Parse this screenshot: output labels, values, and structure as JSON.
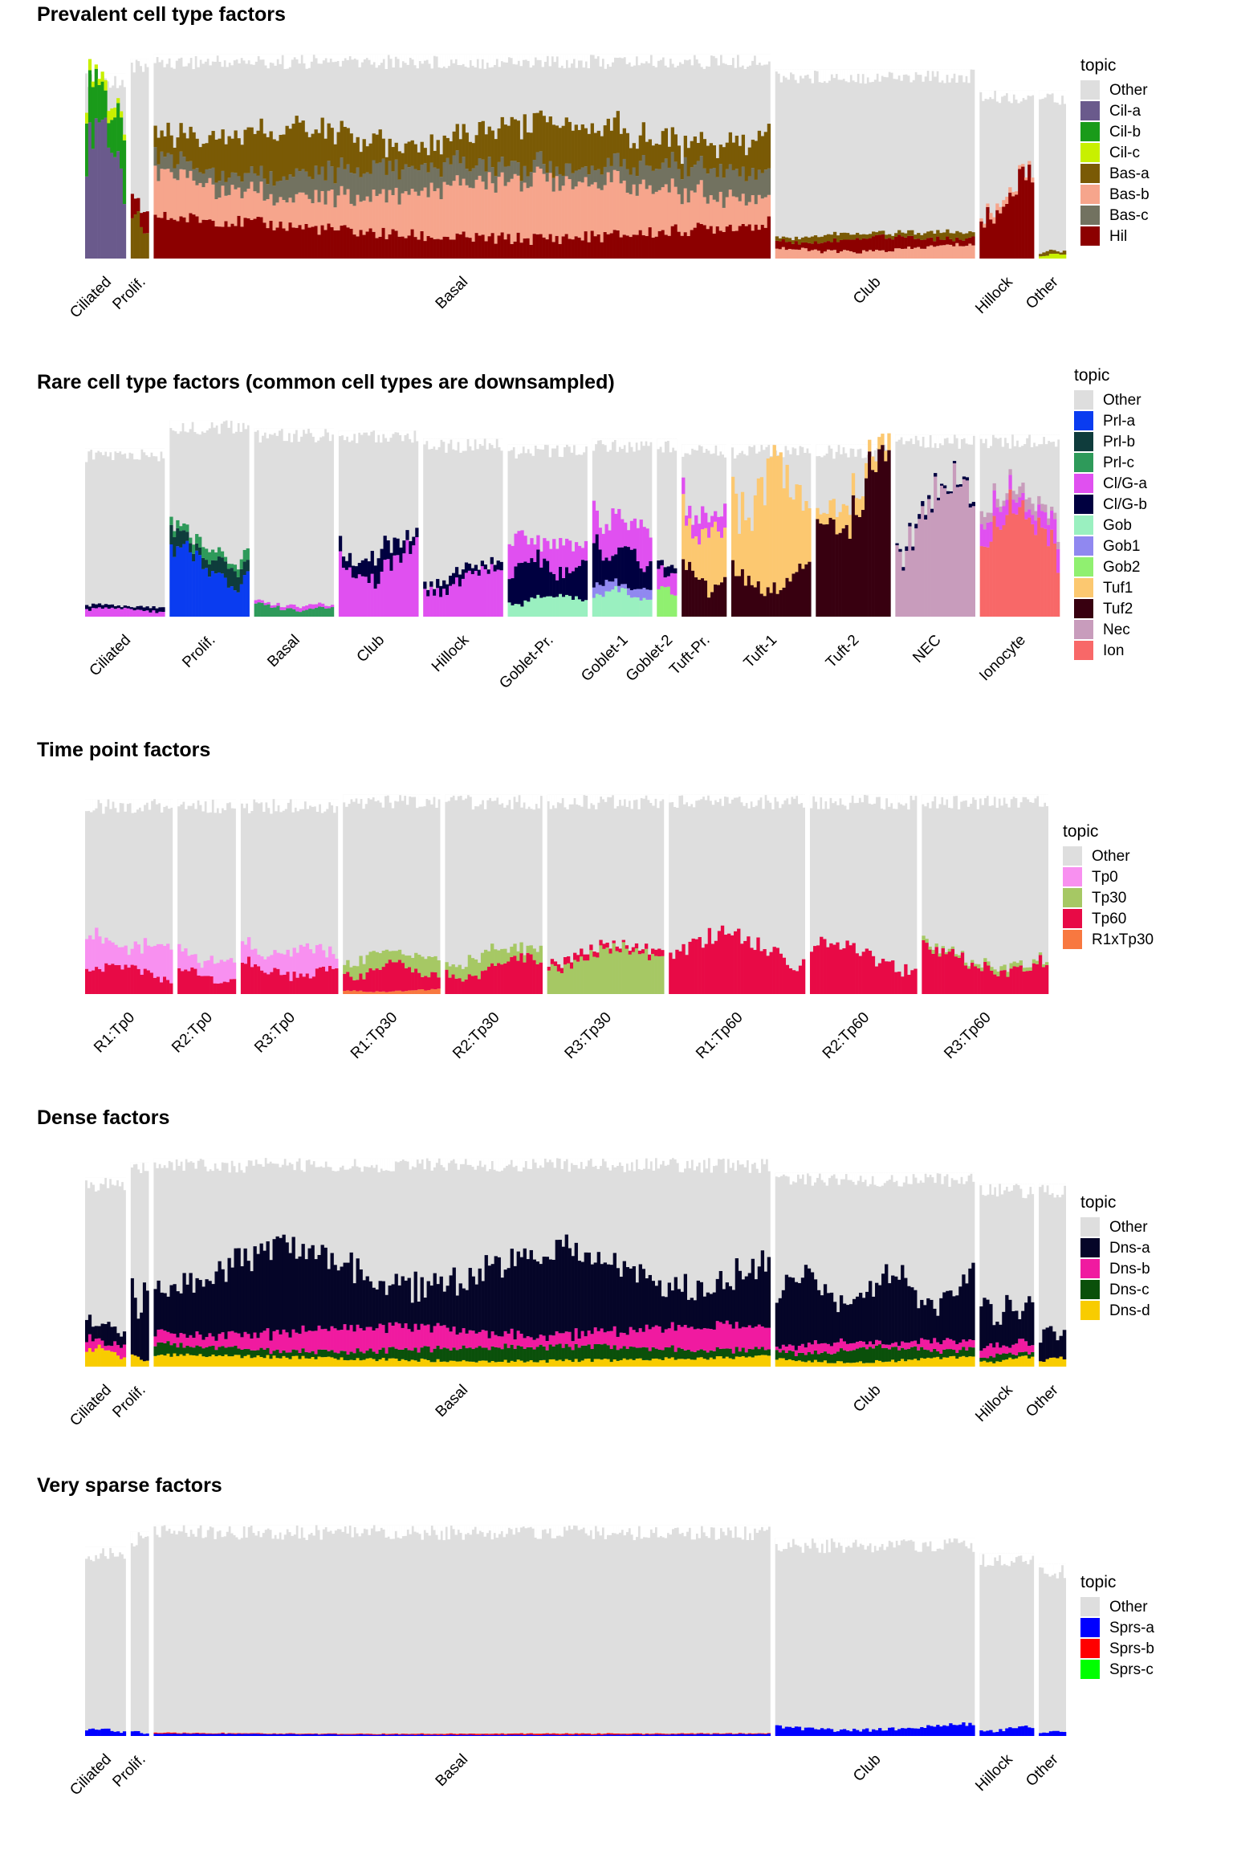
{
  "colors": {
    "Other": "#dedede",
    "Cil-a": "#6a5a8c",
    "Cil-b": "#1a9b1a",
    "Cil-c": "#c8f000",
    "Bas-a": "#7a5a05",
    "Bas-b": "#f6a58c",
    "Bas-c": "#727260",
    "Hil": "#8c0000",
    "Prl-a": "#0a3cf0",
    "Prl-b": "#0f3c3c",
    "Prl-c": "#2e9a5a",
    "Cl/G-a": "#e050f0",
    "Cl/G-b": "#000040",
    "Gob": "#9af0c0",
    "Gob1": "#9088f0",
    "Gob2": "#90f070",
    "Tuf1": "#fcc870",
    "Tuf2": "#380010",
    "Nec": "#c89cbc",
    "Ion": "#f86868",
    "Tp0": "#f890f0",
    "Tp30": "#a6c864",
    "Tp60": "#e80a46",
    "R1xTp30": "#f87840",
    "Dns-a": "#050528",
    "Dns-b": "#f01aa0",
    "Dns-c": "#0a500a",
    "Dns-d": "#f8cc00",
    "Sprs-a": "#0000ff",
    "Sprs-b": "#ff0000",
    "Sprs-c": "#00ff00"
  },
  "chart_data": [
    {
      "type": "bar",
      "title": "Prevalent cell type factors",
      "legend_title": "topic",
      "legend": [
        "Other",
        "Cil-a",
        "Cil-b",
        "Cil-c",
        "Bas-a",
        "Bas-b",
        "Bas-c",
        "Hil"
      ],
      "ylim": [
        0,
        1
      ],
      "groups": [
        {
          "label": "Ciliated",
          "n": 45,
          "other_height": 0.88,
          "profile": [
            [
              "Cil-a",
              0.6
            ],
            [
              "Cil-b",
              0.25
            ],
            [
              "Cil-c",
              0.05
            ]
          ]
        },
        {
          "label": "Prolif.",
          "n": 20,
          "other_height": 0.95,
          "profile": [
            [
              "Bas-a",
              0.2
            ],
            [
              "Hil",
              0.1
            ]
          ]
        },
        {
          "label": "Basal",
          "n": 680,
          "other_height": 0.97,
          "profile": [
            [
              "Hil",
              0.18
            ],
            [
              "Bas-b",
              0.25
            ],
            [
              "Bas-c",
              0.12
            ],
            [
              "Bas-a",
              0.2
            ]
          ]
        },
        {
          "label": "Club",
          "n": 220,
          "other_height": 0.9,
          "profile": [
            [
              "Bas-b",
              0.06
            ],
            [
              "Hil",
              0.06
            ],
            [
              "Bas-a",
              0.03
            ]
          ]
        },
        {
          "label": "Hillock",
          "n": 60,
          "other_height": 0.8,
          "profile": [
            [
              "Hil",
              0.35
            ],
            [
              "Bas-b",
              0.03
            ]
          ]
        },
        {
          "label": "Other",
          "n": 30,
          "other_height": 0.8,
          "profile": [
            [
              "Cil-c",
              0.02
            ],
            [
              "Bas-a",
              0.02
            ]
          ]
        }
      ]
    },
    {
      "type": "bar",
      "title": "Rare cell type factors (common cell types are downsampled)",
      "legend_title": "topic",
      "legend": [
        "Other",
        "Prl-a",
        "Prl-b",
        "Prl-c",
        "Cl/G-a",
        "Cl/G-b",
        "Gob",
        "Gob1",
        "Gob2",
        "Tuf1",
        "Tuf2",
        "Nec",
        "Ion"
      ],
      "ylim": [
        0,
        1
      ],
      "groups": [
        {
          "label": "Ciliated",
          "n": 80,
          "other_height": 0.83,
          "profile": [
            [
              "Cl/G-a",
              0.04
            ],
            [
              "Cl/G-b",
              0.02
            ]
          ]
        },
        {
          "label": "Prolif.",
          "n": 80,
          "other_height": 0.97,
          "profile": [
            [
              "Prl-a",
              0.3
            ],
            [
              "Prl-b",
              0.08
            ],
            [
              "Prl-c",
              0.05
            ]
          ]
        },
        {
          "label": "Basal",
          "n": 80,
          "other_height": 0.93,
          "profile": [
            [
              "Prl-c",
              0.06
            ],
            [
              "Cl/G-a",
              0.02
            ]
          ]
        },
        {
          "label": "Club",
          "n": 80,
          "other_height": 0.92,
          "profile": [
            [
              "Cl/G-a",
              0.35
            ],
            [
              "Cl/G-b",
              0.1
            ]
          ]
        },
        {
          "label": "Hillock",
          "n": 80,
          "other_height": 0.88,
          "profile": [
            [
              "Cl/G-a",
              0.22
            ],
            [
              "Cl/G-b",
              0.05
            ]
          ]
        },
        {
          "label": "Goblet-Pr.",
          "n": 80,
          "other_height": 0.85,
          "profile": [
            [
              "Gob",
              0.1
            ],
            [
              "Cl/G-b",
              0.2
            ],
            [
              "Cl/G-a",
              0.15
            ]
          ]
        },
        {
          "label": "Goblet-1",
          "n": 60,
          "other_height": 0.88,
          "profile": [
            [
              "Gob",
              0.12
            ],
            [
              "Gob1",
              0.05
            ],
            [
              "Cl/G-b",
              0.2
            ],
            [
              "Cl/G-a",
              0.2
            ]
          ]
        },
        {
          "label": "Goblet-2",
          "n": 20,
          "other_height": 0.88,
          "profile": [
            [
              "Gob2",
              0.15
            ],
            [
              "Cl/G-a",
              0.1
            ],
            [
              "Cl/G-b",
              0.05
            ]
          ]
        },
        {
          "label": "Tuft-Pr.",
          "n": 45,
          "other_height": 0.85,
          "profile": [
            [
              "Tuf2",
              0.25
            ],
            [
              "Tuf1",
              0.3
            ],
            [
              "Cl/G-a",
              0.1
            ]
          ]
        },
        {
          "label": "Tuft-1",
          "n": 80,
          "other_height": 0.85,
          "profile": [
            [
              "Tuf2",
              0.25
            ],
            [
              "Tuf1",
              0.55
            ]
          ]
        },
        {
          "label": "Tuft-2",
          "n": 75,
          "other_height": 0.85,
          "profile": [
            [
              "Tuf2",
              0.7
            ],
            [
              "Tuf1",
              0.1
            ]
          ]
        },
        {
          "label": "NEC",
          "n": 80,
          "other_height": 0.9,
          "profile": [
            [
              "Nec",
              0.6
            ],
            [
              "Cl/G-b",
              0.02
            ]
          ]
        },
        {
          "label": "Ionocyte",
          "n": 80,
          "other_height": 0.9,
          "profile": [
            [
              "Ion",
              0.5
            ],
            [
              "Cl/G-a",
              0.1
            ],
            [
              "Nec",
              0.05
            ]
          ]
        }
      ]
    },
    {
      "type": "bar",
      "title": "Time point factors",
      "legend_title": "topic",
      "legend": [
        "Other",
        "Tp0",
        "Tp30",
        "Tp60",
        "R1xTp30"
      ],
      "ylim": [
        0,
        1
      ],
      "groups": [
        {
          "label": "R1:Tp0",
          "n": 90,
          "other_height": 0.92,
          "profile": [
            [
              "Tp60",
              0.12
            ],
            [
              "Tp0",
              0.15
            ]
          ]
        },
        {
          "label": "R2:Tp0",
          "n": 60,
          "other_height": 0.92,
          "profile": [
            [
              "Tp60",
              0.1
            ],
            [
              "Tp0",
              0.1
            ]
          ]
        },
        {
          "label": "R3:Tp0",
          "n": 100,
          "other_height": 0.92,
          "profile": [
            [
              "Tp60",
              0.15
            ],
            [
              "Tp0",
              0.12
            ]
          ]
        },
        {
          "label": "R1:Tp30",
          "n": 100,
          "other_height": 0.94,
          "profile": [
            [
              "R1xTp30",
              0.02
            ],
            [
              "Tp60",
              0.12
            ],
            [
              "Tp30",
              0.08
            ]
          ]
        },
        {
          "label": "R2:Tp30",
          "n": 100,
          "other_height": 0.94,
          "profile": [
            [
              "Tp60",
              0.15
            ],
            [
              "Tp30",
              0.08
            ]
          ]
        },
        {
          "label": "R3:Tp30",
          "n": 120,
          "other_height": 0.94,
          "profile": [
            [
              "Tp30",
              0.2
            ],
            [
              "Tp60",
              0.03
            ]
          ]
        },
        {
          "label": "R1:Tp60",
          "n": 140,
          "other_height": 0.94,
          "profile": [
            [
              "Tp60",
              0.25
            ]
          ]
        },
        {
          "label": "R2:Tp60",
          "n": 110,
          "other_height": 0.94,
          "profile": [
            [
              "Tp60",
              0.22
            ]
          ]
        },
        {
          "label": "R3:Tp60",
          "n": 130,
          "other_height": 0.94,
          "profile": [
            [
              "Tp60",
              0.2
            ],
            [
              "Tp30",
              0.02
            ]
          ]
        }
      ]
    },
    {
      "type": "bar",
      "title": "Dense factors",
      "legend_title": "topic",
      "legend": [
        "Other",
        "Dns-a",
        "Dns-b",
        "Dns-c",
        "Dns-d"
      ],
      "ylim": [
        0,
        1
      ],
      "groups": [
        {
          "label": "Ciliated",
          "n": 45,
          "other_height": 0.88,
          "profile": [
            [
              "Dns-d",
              0.08
            ],
            [
              "Dns-b",
              0.05
            ],
            [
              "Dns-a",
              0.1
            ]
          ]
        },
        {
          "label": "Prolif.",
          "n": 20,
          "other_height": 0.95,
          "profile": [
            [
              "Dns-d",
              0.05
            ],
            [
              "Dns-a",
              0.3
            ]
          ]
        },
        {
          "label": "Basal",
          "n": 680,
          "other_height": 0.97,
          "profile": [
            [
              "Dns-d",
              0.05
            ],
            [
              "Dns-c",
              0.06
            ],
            [
              "Dns-b",
              0.1
            ],
            [
              "Dns-a",
              0.35
            ]
          ]
        },
        {
          "label": "Club",
          "n": 220,
          "other_height": 0.9,
          "profile": [
            [
              "Dns-d",
              0.04
            ],
            [
              "Dns-c",
              0.06
            ],
            [
              "Dns-b",
              0.04
            ],
            [
              "Dns-a",
              0.3
            ]
          ]
        },
        {
          "label": "Hillock",
          "n": 60,
          "other_height": 0.85,
          "profile": [
            [
              "Dns-d",
              0.04
            ],
            [
              "Dns-c",
              0.03
            ],
            [
              "Dns-b",
              0.05
            ],
            [
              "Dns-a",
              0.2
            ]
          ]
        },
        {
          "label": "Other",
          "n": 30,
          "other_height": 0.85,
          "profile": [
            [
              "Dns-d",
              0.04
            ],
            [
              "Dns-a",
              0.15
            ]
          ]
        }
      ]
    },
    {
      "type": "bar",
      "title": "Very sparse factors",
      "legend_title": "topic",
      "legend": [
        "Other",
        "Sprs-a",
        "Sprs-b",
        "Sprs-c"
      ],
      "ylim": [
        0,
        1
      ],
      "groups": [
        {
          "label": "Ciliated",
          "n": 45,
          "other_height": 0.88,
          "profile": [
            [
              "Sprs-a",
              0.03
            ]
          ]
        },
        {
          "label": "Prolif.",
          "n": 20,
          "other_height": 0.95,
          "profile": [
            [
              "Sprs-a",
              0.02
            ]
          ]
        },
        {
          "label": "Basal",
          "n": 680,
          "other_height": 0.98,
          "profile": [
            [
              "Sprs-a",
              0.01
            ],
            [
              "Sprs-b",
              0.005
            ]
          ]
        },
        {
          "label": "Club",
          "n": 220,
          "other_height": 0.92,
          "profile": [
            [
              "Sprs-a",
              0.05
            ]
          ]
        },
        {
          "label": "Hillock",
          "n": 60,
          "other_height": 0.85,
          "profile": [
            [
              "Sprs-a",
              0.04
            ]
          ]
        },
        {
          "label": "Other",
          "n": 30,
          "other_height": 0.8,
          "profile": [
            [
              "Sprs-a",
              0.02
            ]
          ]
        }
      ]
    }
  ]
}
